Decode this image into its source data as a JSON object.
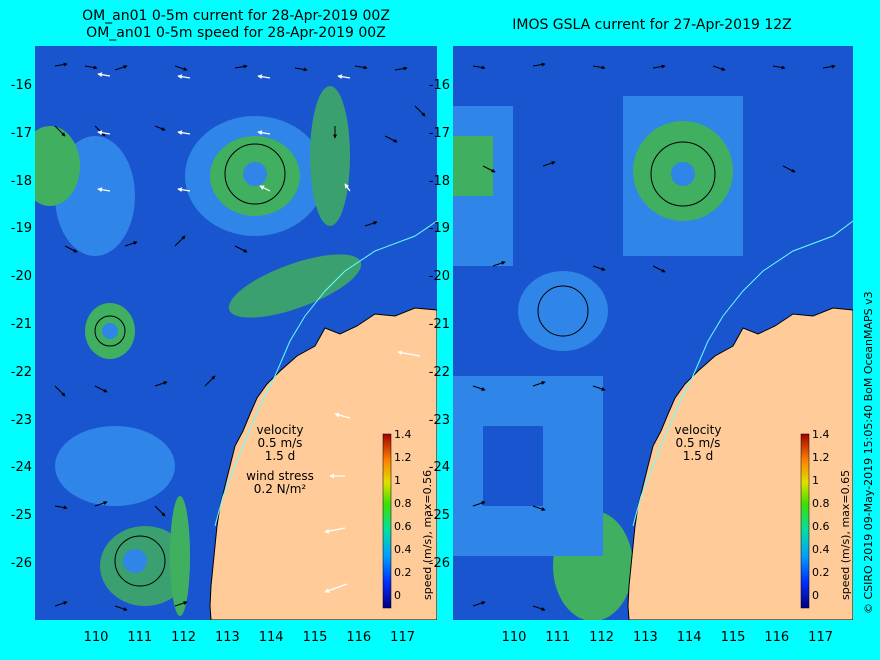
{
  "left_panel": {
    "title_line1": "OM_an01 0-5m current for 28-Apr-2019 00Z",
    "title_line2": "OM_an01 0-5m speed for 28-Apr-2019 00Z",
    "velocity_label": "velocity",
    "velocity_scale": "0.5 m/s",
    "velocity_time": "1.5 d",
    "wind_label": "wind stress",
    "wind_scale": "0.2 N/m²",
    "colorbar_label": "speed (m/s), max=0.56"
  },
  "right_panel": {
    "title": "IMOS GSLA current for 27-Apr-2019 12Z",
    "velocity_label": "velocity",
    "velocity_scale": "0.5 m/s",
    "velocity_time": "1.5 d",
    "colorbar_label": "speed (m/s), max=0.65"
  },
  "credit": "© CSIRO 2019   09-May-2019 15:05:40 BoM OceanMAPS v3",
  "y_ticks": [
    "-16",
    "-17",
    "-18",
    "-19",
    "-20",
    "-21",
    "-22",
    "-23",
    "-24",
    "-25",
    "-26"
  ],
  "x_ticks": [
    "110",
    "111",
    "112",
    "113",
    "114",
    "115",
    "116",
    "117"
  ],
  "colorbar_ticks": [
    "1.4",
    "1.2",
    "1",
    "0.8",
    "0.6",
    "0.4",
    "0.2",
    "0"
  ],
  "colors": {
    "background": "#00ffff",
    "ocean_slow": "#1040c0",
    "ocean_mid": "#2a7ae0",
    "ocean_fast": "#40b060",
    "land": "#ffcc99"
  }
}
